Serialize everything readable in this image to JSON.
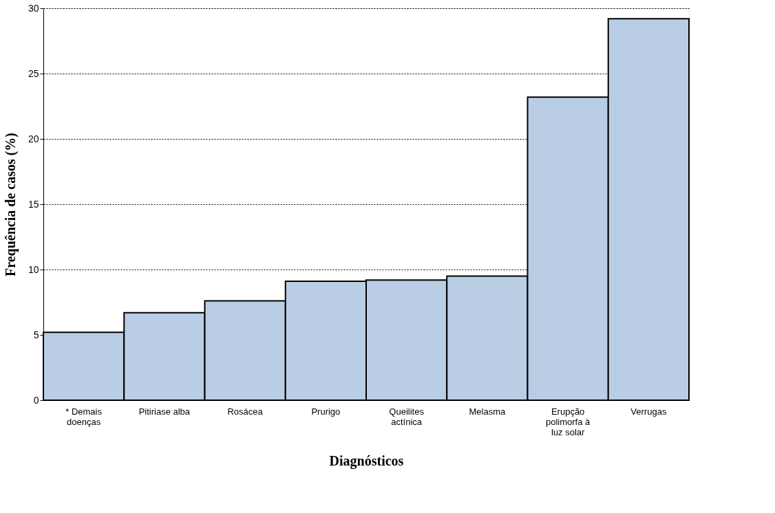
{
  "chart_data": {
    "type": "bar",
    "xlabel": "Diagnósticos",
    "ylabel": "Frequência de casos (%)",
    "categories": [
      "* Demais doenças",
      "Pitiriase alba",
      "Rosácea",
      "Prurigo",
      "Queilites actínica",
      "Melasma",
      "Erupção polimorfa à luz solar",
      "Verrugas"
    ],
    "values": [
      5.2,
      6.7,
      7.6,
      9.1,
      9.2,
      9.5,
      23.2,
      29.2
    ],
    "color": "#b9cde5",
    "ylim": [
      0,
      30
    ],
    "yticks": [
      0,
      5,
      10,
      15,
      20,
      25,
      30
    ],
    "grid": "y"
  }
}
